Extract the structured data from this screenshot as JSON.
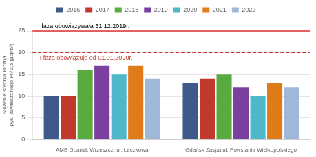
{
  "chart_data": {
    "type": "bar",
    "ylabel": "Stężenie średnia roczna\npyłu zawieszonego PM2,5 [µg/m³]",
    "categories": [
      "AMB Gdańsk Wrzeszcz, ul. Leczkowa",
      "Gdańsk Zaspa ul. Powstania Wielkopolskiego"
    ],
    "series": [
      {
        "name": "2016",
        "color": "#3d5a8a",
        "values": [
          10,
          13
        ]
      },
      {
        "name": "2017",
        "color": "#c0392b",
        "values": [
          10,
          14
        ]
      },
      {
        "name": "2018",
        "color": "#5aab3f",
        "values": [
          16,
          15
        ]
      },
      {
        "name": "2019",
        "color": "#7b3fa0",
        "values": [
          17,
          12
        ]
      },
      {
        "name": "2020",
        "color": "#4eb8c8",
        "values": [
          15,
          10
        ]
      },
      {
        "name": "2021",
        "color": "#e07b1a",
        "values": [
          17,
          13
        ]
      },
      {
        "name": "2022",
        "color": "#a0b8d8",
        "values": [
          14,
          12
        ]
      }
    ],
    "ylim": [
      0,
      25
    ],
    "yticks": [
      0,
      5,
      10,
      15,
      20,
      25
    ],
    "grid": true,
    "legend": "top",
    "annotations": [
      {
        "y": 25,
        "color": "#e03030",
        "line_style": "solid",
        "text": "I faza obowiązywała 31.12.2019r.",
        "text_color": "#000000",
        "text_position": "above"
      },
      {
        "y": 20,
        "color": "#c0392b",
        "line_style": "dashed",
        "text": "II faza obowiązuje od 01.01.2020r.",
        "text_color": "#c0392b",
        "text_position": "below"
      }
    ]
  }
}
